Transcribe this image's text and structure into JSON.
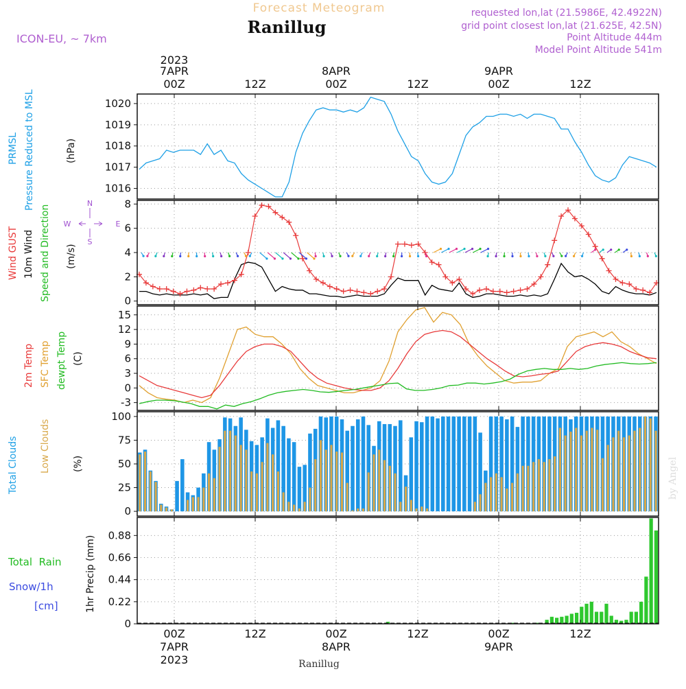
{
  "header": {
    "title_top": "Forecast Meteogram",
    "location": "Ranillug",
    "model": "ICON-EU, ~ 7km",
    "requested": "requested lon,lat (21.5986E, 42.4922N)",
    "grid_point": "grid point closest lon,lat (21.625E, 42.5N)",
    "point_alt": "Point Altitude 444m",
    "model_alt": "Model Point Altitude 541m",
    "footer_location": "Ranillug",
    "watermark": "by Angel"
  },
  "colors": {
    "pressure": "#1ea0e6",
    "gust": "#e83a3a",
    "wind": "#000000",
    "temp2m": "#e83a3a",
    "sfc": "#e0a030",
    "dewpt": "#22bb22",
    "total_clouds": "#1e96e6",
    "low_clouds": "#d8a84a",
    "precip": "#2ec82e",
    "label_purple": "#a050d0",
    "grid": "#999999"
  },
  "time_axis": {
    "top_year": "2023",
    "day_labels": [
      "7APR",
      "8APR",
      "9APR"
    ],
    "hour_labels": [
      "00Z",
      "12Z",
      "00Z",
      "12Z",
      "00Z",
      "12Z"
    ],
    "bottom_year": "2023"
  },
  "panel_labels": {
    "pressure": [
      "PRMSL",
      "Pressure Reduced to MSL"
    ],
    "pressure_unit": "(hPa)",
    "wind_gust": "Wind GUST",
    "wind_10m": "10m Wind",
    "wind_dir": "Speed and Direction",
    "wind_unit": "(m/s)",
    "compass": {
      "n": "N",
      "s": "S",
      "w": "W",
      "e": "E"
    },
    "temp2m": "2m Temp",
    "sfc_temp": "SFC Temp",
    "dewpt": "dewpt Temp",
    "temp_unit": "(C)",
    "total_clouds": "Total Clouds",
    "low_clouds": "Low Clouds",
    "cloud_unit": "(%)",
    "total_rain": "Total  Rain",
    "snow": "Snow/1h",
    "snow_unit": "[cm]",
    "precip": "1hr Precip (mm)"
  },
  "chart_data": [
    {
      "type": "line",
      "title": "PRMSL",
      "ylabel": "(hPa)",
      "ylim": [
        1015.5,
        1020.45
      ],
      "yticks": [
        1016,
        1017,
        1018,
        1019,
        1020
      ],
      "series": [
        {
          "name": "PRMSL",
          "values": [
            1016.9,
            1017.2,
            1017.3,
            1017.4,
            1017.8,
            1017.7,
            1017.8,
            1017.8,
            1017.8,
            1017.6,
            1018.1,
            1017.6,
            1017.8,
            1017.3,
            1017.2,
            1016.7,
            1016.4,
            1016.2,
            1016.0,
            1015.8,
            1015.6,
            1015.6,
            1016.3,
            1017.7,
            1018.6,
            1019.2,
            1019.7,
            1019.8,
            1019.7,
            1019.7,
            1019.6,
            1019.7,
            1019.6,
            1019.8,
            1020.3,
            1020.2,
            1020.1,
            1019.5,
            1018.7,
            1018.1,
            1017.5,
            1017.3,
            1016.7,
            1016.3,
            1016.2,
            1016.3,
            1016.7,
            1017.6,
            1018.5,
            1018.9,
            1019.1,
            1019.4,
            1019.4,
            1019.5,
            1019.5,
            1019.4,
            1019.5,
            1019.3,
            1019.5,
            1019.5,
            1019.4,
            1019.3,
            1018.8,
            1018.8,
            1018.2,
            1017.7,
            1017.1,
            1016.6,
            1016.4,
            1016.3,
            1016.5,
            1017.1,
            1017.5,
            1017.4,
            1017.3,
            1017.2,
            1017.0
          ]
        }
      ]
    },
    {
      "type": "line",
      "title": "Wind",
      "ylabel": "(m/s)",
      "ylim": [
        -0.3,
        8.3
      ],
      "yticks": [
        0,
        2,
        4,
        6,
        8
      ],
      "series": [
        {
          "name": "Wind GUST",
          "values": [
            2.2,
            1.5,
            1.2,
            1.0,
            1.0,
            0.8,
            0.6,
            0.8,
            0.9,
            1.1,
            1.0,
            1.0,
            1.4,
            1.5,
            1.7,
            2.2,
            4.0,
            7.0,
            7.9,
            7.8,
            7.3,
            6.9,
            6.5,
            5.4,
            3.5,
            2.5,
            1.8,
            1.5,
            1.2,
            1.0,
            0.8,
            0.9,
            0.8,
            0.7,
            0.6,
            0.8,
            1.0,
            2.0,
            4.7,
            4.7,
            4.6,
            4.7,
            4.0,
            3.2,
            3.0,
            2.0,
            1.5,
            1.8,
            1.0,
            0.6,
            0.9,
            1.0,
            0.8,
            0.8,
            0.7,
            0.8,
            0.9,
            1.0,
            1.4,
            2.0,
            3.0,
            5.0,
            7.0,
            7.5,
            6.8,
            6.2,
            5.5,
            4.5,
            3.5,
            2.5,
            1.8,
            1.5,
            1.4,
            1.0,
            0.9,
            0.7,
            1.5
          ]
        },
        {
          "name": "10m Wind",
          "values": [
            0.8,
            0.8,
            0.6,
            0.5,
            0.6,
            0.5,
            0.5,
            0.5,
            0.6,
            0.5,
            0.6,
            0.2,
            0.3,
            0.3,
            1.8,
            3.0,
            3.2,
            3.1,
            2.8,
            1.8,
            0.8,
            1.2,
            1.0,
            0.9,
            0.9,
            0.6,
            0.6,
            0.5,
            0.4,
            0.4,
            0.3,
            0.4,
            0.5,
            0.4,
            0.4,
            0.4,
            0.6,
            1.3,
            1.9,
            1.7,
            1.7,
            1.7,
            0.5,
            1.3,
            1.0,
            0.9,
            0.8,
            1.5,
            0.6,
            0.3,
            0.4,
            0.6,
            0.6,
            0.5,
            0.4,
            0.4,
            0.5,
            0.4,
            0.5,
            0.4,
            0.6,
            1.8,
            3.1,
            2.4,
            2.0,
            2.1,
            1.8,
            1.4,
            0.8,
            0.6,
            1.2,
            0.9,
            0.7,
            0.6,
            0.6,
            0.5,
            0.7
          ]
        }
      ]
    },
    {
      "type": "line",
      "title": "Temperature",
      "ylabel": "(C)",
      "ylim": [
        -4.6,
        16.8
      ],
      "yticks": [
        -3,
        0,
        3,
        6,
        9,
        12,
        15
      ],
      "series": [
        {
          "name": "2m Temp",
          "values": [
            2.5,
            1.5,
            0.5,
            0.0,
            -0.5,
            -1.0,
            -1.5,
            -2.0,
            -1.5,
            0.5,
            3.0,
            5.5,
            7.5,
            8.5,
            9.0,
            9.0,
            8.5,
            7.5,
            5.5,
            3.5,
            2.0,
            1.0,
            0.5,
            0.0,
            -0.3,
            -0.5,
            -0.5,
            0.0,
            1.5,
            4.0,
            7.0,
            9.5,
            11.0,
            11.5,
            11.8,
            11.5,
            10.5,
            9.0,
            7.5,
            6.0,
            4.8,
            3.5,
            2.5,
            2.3,
            2.5,
            2.8,
            3.0,
            3.5,
            5.5,
            7.5,
            8.5,
            9.0,
            9.3,
            9.0,
            8.5,
            7.5,
            6.8,
            6.2,
            6.0
          ]
        },
        {
          "name": "SFC Temp",
          "values": [
            0.5,
            -1.0,
            -2.0,
            -2.3,
            -2.5,
            -3.0,
            -2.5,
            -3.0,
            -2.0,
            2.0,
            7.0,
            12.0,
            12.5,
            11.0,
            10.5,
            10.5,
            9.0,
            7.0,
            4.0,
            2.0,
            0.5,
            0.0,
            -0.5,
            -1.0,
            -1.0,
            -0.5,
            0.0,
            1.5,
            5.5,
            11.5,
            14.0,
            16.0,
            16.5,
            13.5,
            15.5,
            15.0,
            13.0,
            9.0,
            6.5,
            4.5,
            3.0,
            1.5,
            1.0,
            1.2,
            1.2,
            1.5,
            3.0,
            4.0,
            8.5,
            10.5,
            11.0,
            11.5,
            10.5,
            11.5,
            9.5,
            8.5,
            7.0,
            6.0,
            5.0
          ]
        },
        {
          "name": "dewpt Temp",
          "values": [
            -3.2,
            -2.8,
            -2.5,
            -2.5,
            -2.6,
            -2.9,
            -3.2,
            -3.8,
            -3.8,
            -4.3,
            -3.5,
            -3.8,
            -3.2,
            -2.8,
            -2.2,
            -1.5,
            -1.0,
            -0.7,
            -0.5,
            -0.3,
            -0.5,
            -0.8,
            -0.9,
            -0.7,
            -0.5,
            -0.3,
            0.0,
            0.3,
            0.6,
            0.9,
            1.0,
            -0.2,
            -0.5,
            -0.5,
            -0.3,
            0.0,
            0.5,
            0.6,
            1.0,
            1.0,
            0.8,
            1.0,
            1.3,
            1.8,
            2.8,
            3.5,
            3.8,
            4.0,
            3.8,
            3.8,
            4.0,
            3.8,
            4.0,
            4.5,
            4.8,
            5.0,
            5.2,
            5.0,
            4.9,
            5.0,
            5.2
          ]
        }
      ]
    },
    {
      "type": "bar",
      "title": "Clouds",
      "ylabel": "(%)",
      "ylim": [
        -5,
        105
      ],
      "yticks": [
        0,
        25,
        50,
        75,
        100
      ],
      "series": [
        {
          "name": "Total Clouds",
          "values": [
            62,
            65,
            43,
            32,
            8,
            5,
            2,
            32,
            55,
            20,
            17,
            25,
            40,
            73,
            65,
            76,
            99,
            98,
            90,
            99,
            86,
            74,
            70,
            78,
            98,
            88,
            96,
            90,
            77,
            73,
            47,
            49,
            82,
            87,
            100,
            99,
            100,
            100,
            97,
            85,
            90,
            97,
            100,
            91,
            69,
            95,
            92,
            92,
            90,
            96,
            38,
            78,
            95,
            94,
            100,
            100,
            98,
            100,
            100,
            100,
            100,
            100,
            100,
            100,
            83,
            43,
            100,
            100,
            100,
            97,
            100,
            89,
            100,
            100,
            100,
            100,
            100,
            100,
            100,
            100,
            100,
            97,
            100,
            100,
            100,
            100,
            100,
            100,
            100,
            100,
            100,
            100,
            100,
            100,
            100,
            100,
            100,
            100
          ]
        },
        {
          "name": "Low Clouds",
          "values": [
            60,
            63,
            42,
            31,
            7,
            4,
            2,
            0,
            0,
            12,
            15,
            15,
            25,
            40,
            35,
            68,
            85,
            85,
            80,
            70,
            65,
            42,
            40,
            52,
            72,
            60,
            42,
            20,
            10,
            7,
            3,
            10,
            25,
            55,
            75,
            65,
            70,
            63,
            62,
            30,
            1,
            3,
            3,
            41,
            60,
            65,
            54,
            48,
            40,
            10,
            26,
            12,
            3,
            5,
            3,
            0,
            0,
            0,
            0,
            0,
            0,
            0,
            0,
            10,
            18,
            30,
            36,
            40,
            36,
            24,
            30,
            40,
            48,
            48,
            52,
            55,
            52,
            55,
            58,
            88,
            80,
            84,
            88,
            80,
            85,
            88,
            86,
            56,
            70,
            78,
            85,
            78,
            80,
            85,
            88,
            100,
            98,
            85
          ]
        }
      ]
    },
    {
      "type": "bar",
      "title": "Precip",
      "ylabel": "1hr Precip (mm)",
      "ylim": [
        0,
        1.06
      ],
      "yticks": [
        0,
        0.22,
        0.44,
        0.66,
        0.88
      ],
      "ytick_labels": [
        "0",
        "0.22",
        "0.44",
        "0.66",
        "0.88"
      ],
      "series": [
        {
          "name": "1hr Precip",
          "values": [
            0,
            0,
            0,
            0,
            0,
            0,
            0,
            0,
            0,
            0,
            0,
            0,
            0,
            0,
            0,
            0,
            0,
            0,
            0,
            0,
            0,
            0,
            0,
            0,
            0,
            0,
            0,
            0,
            0,
            0,
            0,
            0,
            0,
            0,
            0,
            0,
            0,
            0,
            0,
            0,
            0,
            0,
            0,
            0,
            0,
            0,
            0,
            0,
            0,
            0,
            0.02,
            0.01,
            0,
            0,
            0,
            0,
            0,
            0,
            0,
            0,
            0,
            0,
            0,
            0,
            0,
            0,
            0,
            0,
            0,
            0,
            0,
            0,
            0,
            0,
            0,
            0.01,
            0,
            0,
            0,
            0,
            0.01,
            0,
            0.04,
            0.07,
            0.06,
            0.07,
            0.08,
            0.1,
            0.11,
            0.17,
            0.2,
            0.22,
            0.12,
            0.12,
            0.2,
            0.08,
            0.04,
            0.03,
            0.04,
            0.12,
            0.12,
            0.22,
            0.47,
            1.05,
            0.93
          ]
        }
      ]
    }
  ]
}
